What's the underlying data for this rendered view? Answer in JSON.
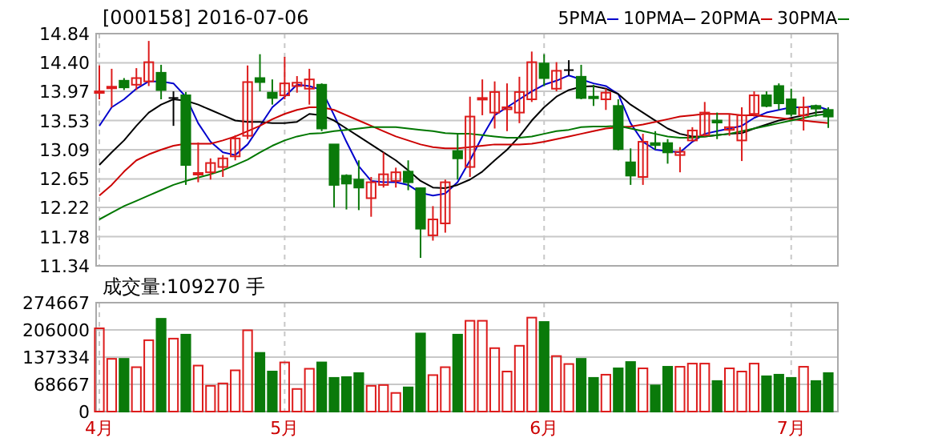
{
  "chart_data": [
    {
      "type": "candlestick",
      "title": "[000158] 2016-07-06",
      "categories": [
        null,
        null,
        null,
        null,
        null,
        null,
        null,
        null,
        null,
        null,
        null,
        null,
        null,
        null,
        null,
        null,
        null,
        null,
        null,
        null,
        null,
        null,
        null,
        null,
        null,
        null,
        null,
        null,
        null,
        null,
        null,
        null,
        null,
        null,
        null,
        null,
        null,
        null,
        null,
        null,
        null,
        null,
        null,
        null,
        null,
        null,
        null,
        null,
        null,
        null,
        null,
        null,
        null,
        null,
        null,
        null,
        null,
        null,
        null,
        null
      ],
      "ohlc": [
        [
          13.95,
          14.36,
          13.85,
          13.97
        ],
        [
          14.03,
          14.31,
          13.73,
          14.04
        ],
        [
          14.13,
          14.17,
          13.99,
          14.03
        ],
        [
          14.07,
          14.32,
          13.99,
          14.17
        ],
        [
          14.12,
          14.73,
          14.05,
          14.41
        ],
        [
          14.25,
          14.37,
          13.85,
          13.99
        ],
        [
          13.87,
          13.97,
          13.45,
          13.87
        ],
        [
          13.91,
          13.96,
          12.56,
          12.86
        ],
        [
          12.72,
          13.2,
          12.6,
          12.74
        ],
        [
          12.75,
          12.96,
          12.64,
          12.89
        ],
        [
          12.83,
          13.01,
          12.68,
          12.96
        ],
        [
          12.99,
          13.31,
          12.93,
          13.26
        ],
        [
          13.3,
          14.36,
          13.25,
          14.11
        ],
        [
          14.17,
          14.53,
          13.97,
          14.11
        ],
        [
          13.95,
          14.15,
          13.77,
          13.87
        ],
        [
          13.91,
          14.49,
          13.85,
          14.09
        ],
        [
          14.05,
          14.2,
          13.95,
          14.1
        ],
        [
          14.01,
          14.31,
          13.77,
          14.15
        ],
        [
          14.07,
          14.09,
          13.37,
          13.41
        ],
        [
          13.17,
          13.17,
          12.22,
          12.56
        ],
        [
          12.7,
          12.72,
          12.19,
          12.58
        ],
        [
          12.64,
          12.93,
          12.18,
          12.52
        ],
        [
          12.36,
          12.68,
          12.08,
          12.6
        ],
        [
          12.56,
          13.05,
          12.52,
          12.72
        ],
        [
          12.62,
          12.82,
          12.52,
          12.75
        ],
        [
          12.76,
          12.93,
          12.48,
          12.6
        ],
        [
          12.51,
          12.52,
          11.46,
          11.9
        ],
        [
          11.8,
          12.24,
          11.72,
          12.04
        ],
        [
          11.98,
          12.64,
          11.84,
          12.6
        ],
        [
          13.07,
          13.33,
          12.64,
          12.96
        ],
        [
          12.83,
          13.89,
          12.68,
          13.59
        ],
        [
          13.86,
          14.15,
          13.61,
          13.87
        ],
        [
          13.65,
          14.12,
          13.41,
          13.96
        ],
        [
          13.7,
          14.09,
          13.37,
          13.73
        ],
        [
          13.65,
          14.19,
          13.49,
          13.96
        ],
        [
          13.85,
          14.57,
          13.81,
          14.41
        ],
        [
          14.39,
          14.53,
          14.05,
          14.17
        ],
        [
          14.01,
          14.41,
          13.97,
          14.28
        ],
        [
          14.29,
          14.44,
          14.21,
          14.29
        ],
        [
          14.19,
          14.37,
          13.85,
          13.87
        ],
        [
          13.89,
          14.07,
          13.75,
          13.87
        ],
        [
          13.85,
          14.01,
          13.69,
          13.95
        ],
        [
          13.75,
          13.85,
          13.08,
          13.1
        ],
        [
          12.9,
          13.11,
          12.56,
          12.7
        ],
        [
          12.68,
          13.33,
          12.56,
          13.21
        ],
        [
          13.19,
          13.37,
          13.09,
          13.16
        ],
        [
          13.19,
          13.25,
          12.88,
          13.05
        ],
        [
          13.01,
          13.13,
          12.75,
          13.06
        ],
        [
          13.23,
          13.43,
          13.22,
          13.38
        ],
        [
          13.31,
          13.81,
          13.29,
          13.65
        ],
        [
          13.53,
          13.65,
          13.25,
          13.5
        ],
        [
          13.39,
          13.63,
          13.3,
          13.43
        ],
        [
          13.23,
          13.73,
          12.92,
          13.61
        ],
        [
          13.63,
          13.97,
          13.59,
          13.91
        ],
        [
          13.91,
          13.97,
          13.73,
          13.75
        ],
        [
          14.05,
          14.09,
          13.69,
          13.79
        ],
        [
          13.85,
          14.01,
          13.59,
          13.63
        ],
        [
          13.61,
          13.89,
          13.38,
          13.73
        ],
        [
          13.75,
          13.77,
          13.59,
          13.71
        ],
        [
          13.69,
          13.73,
          13.42,
          13.59
        ]
      ],
      "colors": [
        "#dd1c1c",
        "#dd1c1c",
        "#0a7a0a",
        "#dd1c1c",
        "#dd1c1c",
        "#0a7a0a",
        "#000000",
        "#0a7a0a",
        "#dd1c1c",
        "#dd1c1c",
        "#dd1c1c",
        "#dd1c1c",
        "#dd1c1c",
        "#0a7a0a",
        "#0a7a0a",
        "#dd1c1c",
        "#dd1c1c",
        "#dd1c1c",
        "#0a7a0a",
        "#0a7a0a",
        "#0a7a0a",
        "#0a7a0a",
        "#dd1c1c",
        "#dd1c1c",
        "#dd1c1c",
        "#0a7a0a",
        "#0a7a0a",
        "#dd1c1c",
        "#dd1c1c",
        "#0a7a0a",
        "#dd1c1c",
        "#dd1c1c",
        "#dd1c1c",
        "#dd1c1c",
        "#dd1c1c",
        "#dd1c1c",
        "#0a7a0a",
        "#dd1c1c",
        "#000000",
        "#0a7a0a",
        "#0a7a0a",
        "#dd1c1c",
        "#0a7a0a",
        "#0a7a0a",
        "#dd1c1c",
        "#0a7a0a",
        "#0a7a0a",
        "#dd1c1c",
        "#dd1c1c",
        "#dd1c1c",
        "#0a7a0a",
        "#dd1c1c",
        "#dd1c1c",
        "#dd1c1c",
        "#0a7a0a",
        "#0a7a0a",
        "#0a7a0a",
        "#dd1c1c",
        "#0a7a0a",
        "#0a7a0a"
      ],
      "series": [
        {
          "name": "5PMA",
          "type": "line",
          "color": "#0000cc",
          "values": [
            13.45,
            13.73,
            13.85,
            14.01,
            14.12,
            14.12,
            14.09,
            13.89,
            13.49,
            13.21,
            13.05,
            13.01,
            13.17,
            13.45,
            13.73,
            13.89,
            14.07,
            14.05,
            13.99,
            13.61,
            13.21,
            12.84,
            12.62,
            12.6,
            12.6,
            12.56,
            12.44,
            12.4,
            12.43,
            12.6,
            12.93,
            13.29,
            13.61,
            13.73,
            13.85,
            13.97,
            14.07,
            14.13,
            14.21,
            14.15,
            14.09,
            14.05,
            13.93,
            13.49,
            13.21,
            13.09,
            13.07,
            13.05,
            13.21,
            13.33,
            13.37,
            13.41,
            13.45,
            13.57,
            13.65,
            13.69,
            13.73,
            13.73,
            13.75,
            13.69
          ]
        },
        {
          "name": "10PMA",
          "type": "line",
          "color": "#000000",
          "values": [
            12.86,
            13.05,
            13.23,
            13.45,
            13.65,
            13.77,
            13.85,
            13.83,
            13.77,
            13.69,
            13.61,
            13.53,
            13.51,
            13.51,
            13.49,
            13.49,
            13.51,
            13.63,
            13.61,
            13.53,
            13.41,
            13.29,
            13.17,
            13.05,
            12.93,
            12.78,
            12.62,
            12.52,
            12.51,
            12.56,
            12.64,
            12.76,
            12.93,
            13.09,
            13.29,
            13.53,
            13.73,
            13.89,
            13.99,
            14.04,
            14.05,
            14.01,
            13.93,
            13.77,
            13.65,
            13.53,
            13.41,
            13.33,
            13.29,
            13.29,
            13.31,
            13.33,
            13.34,
            13.41,
            13.47,
            13.53,
            13.57,
            13.61,
            13.65,
            13.67
          ]
        },
        {
          "name": "20PMA",
          "type": "line",
          "color": "#cc0000",
          "values": [
            12.4,
            12.56,
            12.76,
            12.93,
            13.02,
            13.09,
            13.15,
            13.18,
            13.18,
            13.18,
            13.23,
            13.29,
            13.37,
            13.45,
            13.55,
            13.63,
            13.69,
            13.73,
            13.73,
            13.69,
            13.61,
            13.53,
            13.45,
            13.37,
            13.29,
            13.23,
            13.17,
            13.13,
            13.11,
            13.11,
            13.13,
            13.15,
            13.17,
            13.17,
            13.17,
            13.18,
            13.21,
            13.25,
            13.29,
            13.33,
            13.37,
            13.41,
            13.43,
            13.44,
            13.47,
            13.51,
            13.55,
            13.59,
            13.61,
            13.63,
            13.63,
            13.63,
            13.61,
            13.61,
            13.59,
            13.57,
            13.55,
            13.53,
            13.51,
            13.49
          ]
        },
        {
          "name": "30PMA",
          "type": "line",
          "color": "#007700",
          "values": [
            12.04,
            12.14,
            12.24,
            12.32,
            12.4,
            12.48,
            12.56,
            12.62,
            12.67,
            12.72,
            12.78,
            12.86,
            12.94,
            13.05,
            13.15,
            13.23,
            13.29,
            13.33,
            13.34,
            13.37,
            13.39,
            13.41,
            13.43,
            13.43,
            13.43,
            13.41,
            13.39,
            13.37,
            13.34,
            13.33,
            13.33,
            13.31,
            13.29,
            13.27,
            13.27,
            13.29,
            13.33,
            13.37,
            13.39,
            13.43,
            13.44,
            13.44,
            13.45,
            13.41,
            13.37,
            13.33,
            13.29,
            13.27,
            13.27,
            13.29,
            13.31,
            13.33,
            13.37,
            13.41,
            13.45,
            13.49,
            13.53,
            13.57,
            13.61,
            13.63
          ]
        }
      ],
      "ylim": [
        11.34,
        14.84
      ],
      "yticks": [
        11.34,
        11.78,
        12.22,
        12.65,
        13.09,
        13.53,
        13.97,
        {
          "value": 14.4,
          "label": "14.40"
        },
        14.84
      ],
      "grid": true,
      "legend": "top right",
      "tick_labels": "y"
    },
    {
      "type": "bar",
      "title": "成交量:109270 手",
      "categories": [
        "4月",
        null,
        null,
        null,
        null,
        null,
        null,
        null,
        null,
        null,
        null,
        null,
        null,
        null,
        null,
        "5月",
        null,
        null,
        null,
        null,
        null,
        null,
        null,
        null,
        null,
        null,
        null,
        null,
        null,
        null,
        null,
        null,
        null,
        null,
        null,
        null,
        "6月",
        null,
        null,
        null,
        null,
        null,
        null,
        null,
        null,
        null,
        null,
        null,
        null,
        null,
        null,
        null,
        null,
        null,
        null,
        null,
        "7月",
        null,
        null,
        null
      ],
      "values": [
        210000,
        133000,
        133000,
        112000,
        180000,
        234000,
        184000,
        194000,
        116000,
        65000,
        71000,
        104000,
        205000,
        148000,
        101000,
        124000,
        57000,
        108000,
        124000,
        85000,
        87000,
        97000,
        65000,
        67000,
        47000,
        61000,
        197000,
        92000,
        112000,
        194000,
        229000,
        229000,
        160000,
        101000,
        166000,
        237000,
        226000,
        140000,
        120000,
        133000,
        85000,
        93000,
        109000,
        125000,
        109000,
        66000,
        113000,
        113000,
        121000,
        121000,
        77000,
        109000,
        101000,
        121000,
        89000,
        93000,
        85000,
        113000,
        77000,
        97000
      ],
      "colors": [
        "#dd1c1c",
        "#dd1c1c",
        "#0a7a0a",
        "#dd1c1c",
        "#dd1c1c",
        "#0a7a0a",
        "#dd1c1c",
        "#0a7a0a",
        "#dd1c1c",
        "#dd1c1c",
        "#dd1c1c",
        "#dd1c1c",
        "#dd1c1c",
        "#0a7a0a",
        "#0a7a0a",
        "#dd1c1c",
        "#dd1c1c",
        "#dd1c1c",
        "#0a7a0a",
        "#0a7a0a",
        "#0a7a0a",
        "#0a7a0a",
        "#dd1c1c",
        "#dd1c1c",
        "#dd1c1c",
        "#0a7a0a",
        "#0a7a0a",
        "#dd1c1c",
        "#dd1c1c",
        "#0a7a0a",
        "#dd1c1c",
        "#dd1c1c",
        "#dd1c1c",
        "#dd1c1c",
        "#dd1c1c",
        "#dd1c1c",
        "#0a7a0a",
        "#dd1c1c",
        "#dd1c1c",
        "#0a7a0a",
        "#0a7a0a",
        "#dd1c1c",
        "#0a7a0a",
        "#0a7a0a",
        "#dd1c1c",
        "#0a7a0a",
        "#0a7a0a",
        "#dd1c1c",
        "#dd1c1c",
        "#dd1c1c",
        "#0a7a0a",
        "#dd1c1c",
        "#dd1c1c",
        "#dd1c1c",
        "#0a7a0a",
        "#0a7a0a",
        "#0a7a0a",
        "#dd1c1c",
        "#0a7a0a",
        "#0a7a0a"
      ],
      "ylim": [
        0,
        274667
      ],
      "yticks": [
        0,
        68667,
        137334,
        206000,
        274667
      ],
      "grid": true
    }
  ]
}
